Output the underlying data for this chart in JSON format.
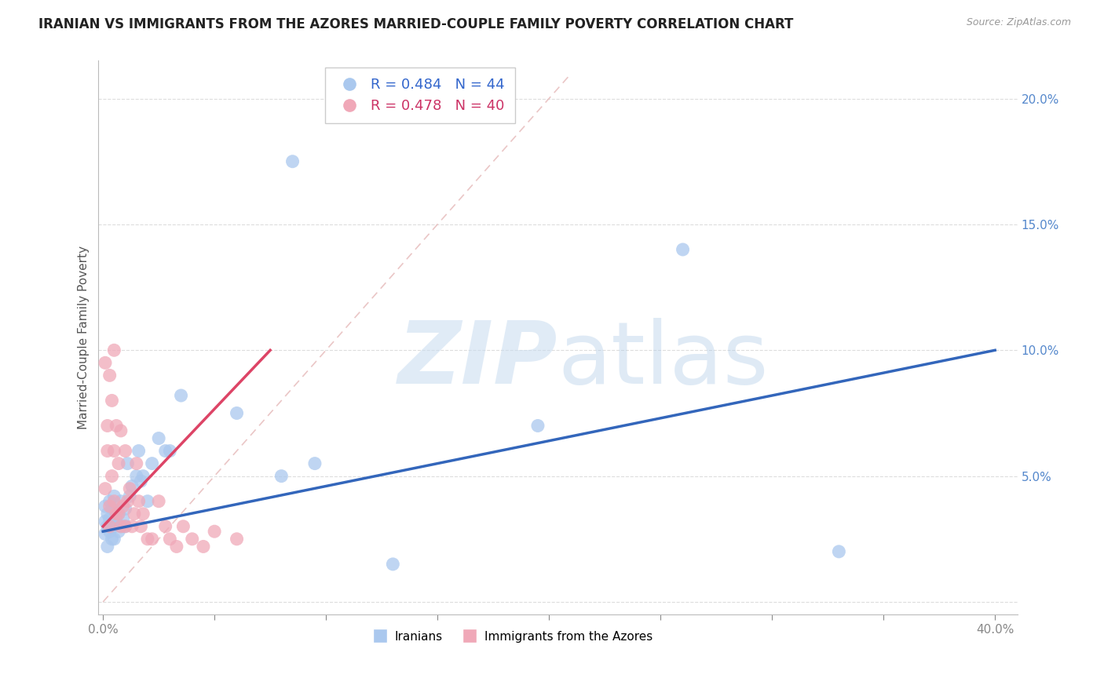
{
  "title": "IRANIAN VS IMMIGRANTS FROM THE AZORES MARRIED-COUPLE FAMILY POVERTY CORRELATION CHART",
  "source": "Source: ZipAtlas.com",
  "ylabel": "Married-Couple Family Poverty",
  "yticks": [
    0.0,
    0.05,
    0.1,
    0.15,
    0.2
  ],
  "ytick_labels": [
    "",
    "5.0%",
    "10.0%",
    "15.0%",
    "20.0%"
  ],
  "xticks": [
    0.0,
    0.05,
    0.1,
    0.15,
    0.2,
    0.25,
    0.3,
    0.35,
    0.4
  ],
  "xlim": [
    -0.002,
    0.41
  ],
  "ylim": [
    -0.005,
    0.215
  ],
  "iranians_R": 0.484,
  "iranians_N": 44,
  "azores_R": 0.478,
  "azores_N": 40,
  "blue_color": "#aac8ee",
  "pink_color": "#f0a8b8",
  "blue_line_color": "#3366bb",
  "pink_line_color": "#dd4466",
  "diag_color": "#e8c0c0",
  "watermark_color": "#dae6f5",
  "background_color": "#ffffff",
  "iranians_x": [
    0.001,
    0.001,
    0.001,
    0.002,
    0.002,
    0.002,
    0.003,
    0.003,
    0.003,
    0.004,
    0.004,
    0.005,
    0.005,
    0.005,
    0.006,
    0.006,
    0.007,
    0.007,
    0.008,
    0.008,
    0.009,
    0.01,
    0.01,
    0.011,
    0.012,
    0.013,
    0.015,
    0.016,
    0.017,
    0.018,
    0.02,
    0.022,
    0.025,
    0.028,
    0.03,
    0.035,
    0.06,
    0.08,
    0.085,
    0.095,
    0.13,
    0.195,
    0.26,
    0.33
  ],
  "iranians_y": [
    0.032,
    0.027,
    0.038,
    0.035,
    0.022,
    0.03,
    0.028,
    0.04,
    0.033,
    0.025,
    0.037,
    0.03,
    0.025,
    0.042,
    0.032,
    0.036,
    0.028,
    0.035,
    0.03,
    0.04,
    0.033,
    0.037,
    0.03,
    0.055,
    0.042,
    0.046,
    0.05,
    0.06,
    0.048,
    0.05,
    0.04,
    0.055,
    0.065,
    0.06,
    0.06,
    0.082,
    0.075,
    0.05,
    0.175,
    0.055,
    0.015,
    0.07,
    0.14,
    0.02
  ],
  "azores_x": [
    0.001,
    0.001,
    0.002,
    0.002,
    0.003,
    0.003,
    0.003,
    0.004,
    0.004,
    0.005,
    0.005,
    0.005,
    0.006,
    0.006,
    0.007,
    0.007,
    0.008,
    0.008,
    0.009,
    0.01,
    0.01,
    0.011,
    0.012,
    0.013,
    0.014,
    0.015,
    0.016,
    0.017,
    0.018,
    0.02,
    0.022,
    0.025,
    0.028,
    0.03,
    0.033,
    0.036,
    0.04,
    0.045,
    0.05,
    0.06
  ],
  "azores_y": [
    0.045,
    0.095,
    0.06,
    0.07,
    0.09,
    0.038,
    0.03,
    0.08,
    0.05,
    0.1,
    0.06,
    0.04,
    0.035,
    0.07,
    0.035,
    0.055,
    0.068,
    0.03,
    0.038,
    0.03,
    0.06,
    0.04,
    0.045,
    0.03,
    0.035,
    0.055,
    0.04,
    0.03,
    0.035,
    0.025,
    0.025,
    0.04,
    0.03,
    0.025,
    0.022,
    0.03,
    0.025,
    0.022,
    0.028,
    0.025
  ],
  "blue_line_x": [
    0.0,
    0.4
  ],
  "blue_line_y": [
    0.028,
    0.1
  ],
  "pink_line_x": [
    0.0,
    0.075
  ],
  "pink_line_y": [
    0.03,
    0.1
  ],
  "legend_box_color": "#ffffff",
  "legend_border_color": "#cccccc"
}
